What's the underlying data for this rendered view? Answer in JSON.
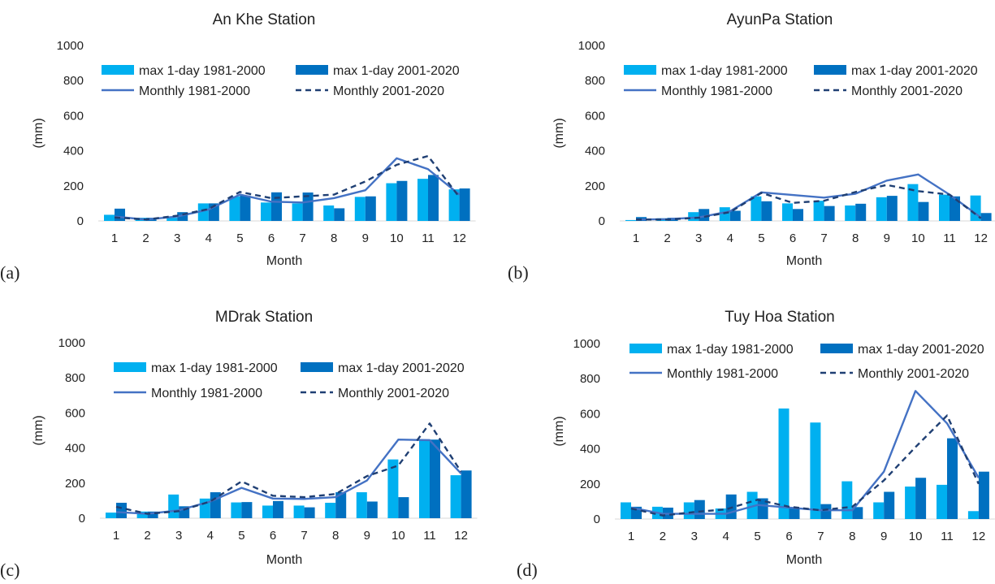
{
  "colors": {
    "max_1981_2000": "#00b0f0",
    "max_2001_2020": "#0070c0",
    "monthly_1981_2000": "#4472c4",
    "monthly_2001_2020": "#1f3f73"
  },
  "chart_data": [
    {
      "type": "bar",
      "panel_label": "(a)",
      "title": "An Khe Station",
      "xlabel": "Month",
      "ylabel": "(mm)",
      "ylim": [
        0,
        1000
      ],
      "yticks": [
        0,
        200,
        400,
        600,
        800,
        1000
      ],
      "categories": [
        "1",
        "2",
        "3",
        "4",
        "5",
        "6",
        "7",
        "8",
        "9",
        "10",
        "11",
        "12"
      ],
      "legend_position": "top",
      "series": [
        {
          "name": "max 1-day 1981-2000",
          "kind": "bar",
          "values": [
            35,
            18,
            18,
            100,
            140,
            105,
            100,
            88,
            137,
            215,
            240,
            180
          ]
        },
        {
          "name": "max 1-day 2001-2020",
          "kind": "bar",
          "values": [
            70,
            18,
            50,
            100,
            145,
            163,
            162,
            72,
            140,
            228,
            262,
            185
          ]
        },
        {
          "name": "Monthly 1981-2000",
          "kind": "line",
          "style": "solid",
          "values": [
            25,
            8,
            25,
            65,
            150,
            110,
            105,
            130,
            175,
            357,
            295,
            150
          ]
        },
        {
          "name": "Monthly 2001-2020",
          "kind": "line",
          "style": "dashed",
          "values": [
            20,
            8,
            30,
            68,
            165,
            130,
            140,
            150,
            225,
            320,
            370,
            135
          ]
        }
      ]
    },
    {
      "type": "bar",
      "panel_label": "(b)",
      "title": "AyunPa Station",
      "xlabel": "Month",
      "ylabel": "(mm)",
      "ylim": [
        0,
        1000
      ],
      "yticks": [
        0,
        200,
        400,
        600,
        800,
        1000
      ],
      "categories": [
        "1",
        "2",
        "3",
        "4",
        "5",
        "6",
        "7",
        "8",
        "9",
        "10",
        "11",
        "12"
      ],
      "legend_position": "top",
      "series": [
        {
          "name": "max 1-day 1981-2000",
          "kind": "bar",
          "values": [
            5,
            15,
            50,
            78,
            140,
            100,
            115,
            88,
            135,
            210,
            150,
            145
          ]
        },
        {
          "name": "max 1-day 2001-2020",
          "kind": "bar",
          "values": [
            22,
            18,
            68,
            58,
            112,
            68,
            85,
            98,
            143,
            108,
            140,
            45
          ]
        },
        {
          "name": "Monthly 1981-2000",
          "kind": "line",
          "style": "solid",
          "values": [
            8,
            10,
            20,
            55,
            163,
            148,
            133,
            155,
            230,
            265,
            150,
            20
          ]
        },
        {
          "name": "Monthly 2001-2020",
          "kind": "line",
          "style": "dashed",
          "values": [
            8,
            8,
            18,
            50,
            160,
            103,
            115,
            165,
            205,
            170,
            150,
            15
          ]
        }
      ]
    },
    {
      "type": "bar",
      "panel_label": "(c)",
      "title": "MDrak Station",
      "xlabel": "Month",
      "ylabel": "(mm)",
      "ylim": [
        0,
        1000
      ],
      "yticks": [
        0,
        200,
        400,
        600,
        800,
        1000
      ],
      "categories": [
        "1",
        "2",
        "3",
        "4",
        "5",
        "6",
        "7",
        "8",
        "9",
        "10",
        "11",
        "12"
      ],
      "legend_position": "top",
      "series": [
        {
          "name": "max 1-day 1981-2000",
          "kind": "bar",
          "values": [
            32,
            38,
            135,
            112,
            90,
            72,
            72,
            88,
            148,
            335,
            445,
            245
          ]
        },
        {
          "name": "max 1-day 2001-2020",
          "kind": "bar",
          "values": [
            88,
            38,
            68,
            148,
            92,
            98,
            62,
            148,
            95,
            120,
            448,
            272
          ]
        },
        {
          "name": "Monthly 1981-2000",
          "kind": "line",
          "style": "solid",
          "values": [
            35,
            25,
            45,
            95,
            173,
            112,
            110,
            120,
            215,
            448,
            445,
            255
          ]
        },
        {
          "name": "Monthly 2001-2020",
          "kind": "line",
          "style": "dashed",
          "values": [
            65,
            25,
            40,
            95,
            210,
            128,
            120,
            138,
            240,
            300,
            540,
            265
          ]
        }
      ]
    },
    {
      "type": "bar",
      "panel_label": "(d)",
      "title": "Tuy Hoa Station",
      "xlabel": "Month",
      "ylabel": "(mm)",
      "ylim": [
        0,
        1000
      ],
      "yticks": [
        0,
        200,
        400,
        600,
        800,
        1000
      ],
      "categories": [
        "1",
        "2",
        "3",
        "4",
        "5",
        "6",
        "7",
        "8",
        "9",
        "10",
        "11",
        "12"
      ],
      "legend_position": "top",
      "series": [
        {
          "name": "max 1-day 1981-2000",
          "kind": "bar",
          "values": [
            95,
            70,
            95,
            60,
            155,
            630,
            550,
            215,
            95,
            185,
            195,
            45
          ]
        },
        {
          "name": "max 1-day 2001-2020",
          "kind": "bar",
          "values": [
            70,
            65,
            108,
            140,
            118,
            65,
            85,
            68,
            155,
            235,
            460,
            270
          ]
        },
        {
          "name": "Monthly 1981-2000",
          "kind": "line",
          "style": "solid",
          "values": [
            65,
            30,
            30,
            30,
            80,
            65,
            50,
            50,
            270,
            730,
            545,
            235
          ]
        },
        {
          "name": "Monthly 2001-2020",
          "kind": "line",
          "style": "dashed",
          "values": [
            60,
            20,
            40,
            55,
            110,
            70,
            50,
            70,
            220,
            410,
            590,
            200
          ]
        }
      ]
    }
  ]
}
